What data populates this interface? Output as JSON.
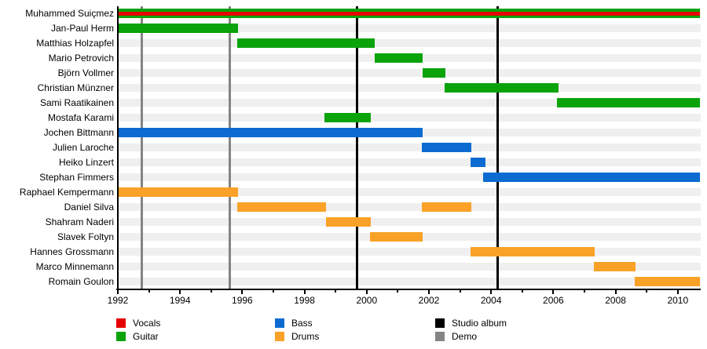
{
  "colors": {
    "Vocals": "#E60000",
    "Guitar": "#0AA30A",
    "Bass": "#0B6BD0",
    "Drums": "#F9A227",
    "Studio album": "#000000",
    "Demo": "#848484",
    "track": "#EFEFEF",
    "axis": "#000000"
  },
  "chart_data": {
    "type": "timeline",
    "title": "",
    "x_axis": {
      "start_year": 1992,
      "end_year": 2010.71,
      "labeled_tick_years": [
        1992,
        1994,
        1996,
        1998,
        2000,
        2002,
        2004,
        2006,
        2008,
        2010
      ],
      "minor_tick_interval": 1,
      "grid": false
    },
    "rows": [
      {
        "name": "Muhammed Suiçmez",
        "bars": [
          {
            "role": "Guitar",
            "from": 1992,
            "to": 2010.71
          },
          {
            "role": "Vocals",
            "from": 1992,
            "to": 2010.71
          }
        ]
      },
      {
        "name": "Jan-Paul Herm",
        "bars": [
          {
            "role": "Guitar",
            "from": 1992,
            "to": 1995.86
          }
        ]
      },
      {
        "name": "Matthias Holzapfel",
        "bars": [
          {
            "role": "Guitar",
            "from": 1995.83,
            "to": 2000.26
          }
        ]
      },
      {
        "name": "Mario Petrovich",
        "bars": [
          {
            "role": "Guitar",
            "from": 2000.26,
            "to": 2001.8
          }
        ]
      },
      {
        "name": "Björn Vollmer",
        "bars": [
          {
            "role": "Guitar",
            "from": 2001.8,
            "to": 2002.53
          }
        ]
      },
      {
        "name": "Christian Münzner",
        "bars": [
          {
            "role": "Guitar",
            "from": 2002.5,
            "to": 2006.17
          }
        ]
      },
      {
        "name": "Sami Raatikainen",
        "bars": [
          {
            "role": "Guitar",
            "from": 2006.12,
            "to": 2010.71
          }
        ]
      },
      {
        "name": "Mostafa Karami",
        "bars": [
          {
            "role": "Guitar",
            "from": 1998.64,
            "to": 2000.13
          }
        ]
      },
      {
        "name": "Jochen Bittmann",
        "bars": [
          {
            "role": "Bass",
            "from": 1992,
            "to": 2001.8
          }
        ]
      },
      {
        "name": "Julien Laroche",
        "bars": [
          {
            "role": "Bass",
            "from": 2001.77,
            "to": 2003.36
          }
        ]
      },
      {
        "name": "Heiko Linzert",
        "bars": [
          {
            "role": "Bass",
            "from": 2003.34,
            "to": 2003.82
          }
        ]
      },
      {
        "name": "Stephan Fimmers",
        "bars": [
          {
            "role": "Bass",
            "from": 2003.74,
            "to": 2010.71
          }
        ]
      },
      {
        "name": "Raphael Kempermann",
        "bars": [
          {
            "role": "Drums",
            "from": 1992,
            "to": 1995.86
          }
        ]
      },
      {
        "name": "Daniel Silva",
        "bars": [
          {
            "role": "Drums",
            "from": 1995.84,
            "to": 1998.69
          },
          {
            "role": "Drums",
            "from": 2001.77,
            "to": 2003.36
          }
        ]
      },
      {
        "name": "Shahram Naderi",
        "bars": [
          {
            "role": "Drums",
            "from": 1998.69,
            "to": 2000.13
          }
        ]
      },
      {
        "name": "Slavek Foltyn",
        "bars": [
          {
            "role": "Drums",
            "from": 2000.11,
            "to": 2001.8
          }
        ]
      },
      {
        "name": "Hannes Grossmann",
        "bars": [
          {
            "role": "Drums",
            "from": 2003.34,
            "to": 2007.33
          }
        ]
      },
      {
        "name": "Marco Minnemann",
        "bars": [
          {
            "role": "Drums",
            "from": 2007.3,
            "to": 2008.64
          }
        ]
      },
      {
        "name": "Romain Goulon",
        "bars": [
          {
            "role": "Drums",
            "from": 2008.62,
            "to": 2010.71
          }
        ]
      }
    ],
    "events": [
      {
        "type": "Demo",
        "year": 1992.77
      },
      {
        "type": "Demo",
        "year": 1995.61
      },
      {
        "type": "Studio album",
        "year": 1999.7
      },
      {
        "type": "Studio album",
        "year": 2004.2
      }
    ],
    "legend": {
      "position": "bottom",
      "items": [
        {
          "label": "Vocals",
          "role": "Vocals"
        },
        {
          "label": "Guitar",
          "role": "Guitar"
        },
        {
          "label": "Bass",
          "role": "Bass"
        },
        {
          "label": "Drums",
          "role": "Drums"
        },
        {
          "label": "Studio album",
          "role": "Studio album"
        },
        {
          "label": "Demo",
          "role": "Demo"
        }
      ]
    }
  }
}
